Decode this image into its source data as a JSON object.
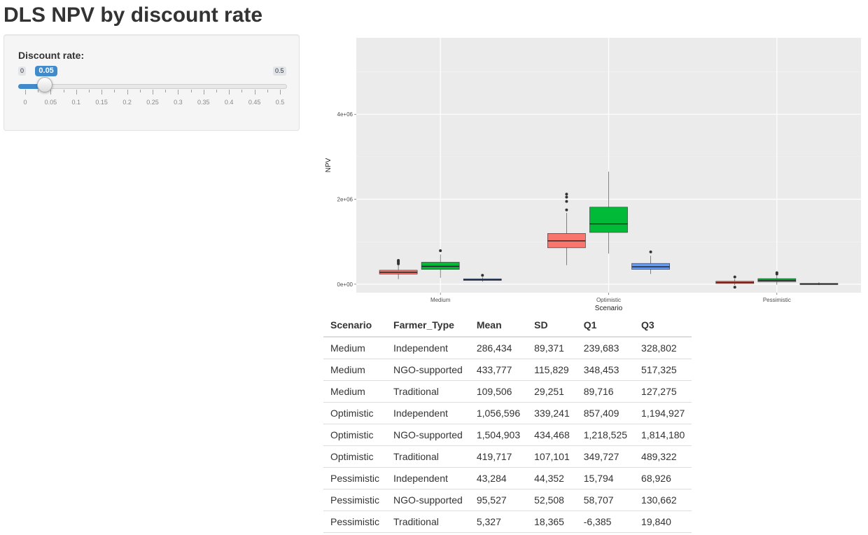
{
  "page": {
    "title": "DLS NPV by discount rate"
  },
  "slider": {
    "label": "Discount rate:",
    "min_label": "0",
    "max_label": "0.5",
    "value_label": "0.05",
    "value": 0.05,
    "min": 0,
    "max": 0.5,
    "tick_labels": [
      "0",
      "0.05",
      "0.1",
      "0.15",
      "0.2",
      "0.25",
      "0.3",
      "0.35",
      "0.4",
      "0.45",
      "0.5"
    ],
    "accent_color": "#428bca"
  },
  "chart_data": {
    "type": "boxplot",
    "xlabel": "Scenario",
    "ylabel": "NPV",
    "categories": [
      "Medium",
      "Optimistic",
      "Pessimistic"
    ],
    "ylim": [
      -200000,
      5800000
    ],
    "yticks": [
      0,
      2000000,
      4000000
    ],
    "ytick_labels": [
      "0e+00",
      "2e+06",
      "4e+06"
    ],
    "grid": true,
    "legend": "none",
    "series": [
      {
        "color": "#f8766d",
        "boxes": [
          {
            "category": "Medium",
            "lower_whisker": 120000,
            "q1": 239683,
            "median": 280000,
            "q3": 328802,
            "upper_whisker": 455000,
            "outliers": [
              480000,
              510000,
              540000,
              560000
            ]
          },
          {
            "category": "Optimistic",
            "lower_whisker": 450000,
            "q1": 857409,
            "median": 1020000,
            "q3": 1194927,
            "upper_whisker": 1680000,
            "outliers": [
              1750000,
              1950000,
              2050000,
              2120000
            ]
          },
          {
            "category": "Pessimistic",
            "lower_whisker": -20000,
            "q1": 15794,
            "median": 40000,
            "q3": 68926,
            "upper_whisker": 120000,
            "outliers": [
              170000,
              -70000
            ]
          }
        ]
      },
      {
        "color": "#00ba38",
        "boxes": [
          {
            "category": "Medium",
            "lower_whisker": 150000,
            "q1": 348453,
            "median": 420000,
            "q3": 517325,
            "upper_whisker": 700000,
            "outliers": [
              790000
            ]
          },
          {
            "category": "Optimistic",
            "lower_whisker": 720000,
            "q1": 1218525,
            "median": 1420000,
            "q3": 1814180,
            "upper_whisker": 2650000,
            "outliers": []
          },
          {
            "category": "Pessimistic",
            "lower_whisker": -10000,
            "q1": 58707,
            "median": 90000,
            "q3": 130662,
            "upper_whisker": 220000,
            "outliers": [
              240000,
              270000
            ]
          }
        ]
      },
      {
        "color": "#619cff",
        "boxes": [
          {
            "category": "Medium",
            "lower_whisker": 60000,
            "q1": 89716,
            "median": 105000,
            "q3": 127275,
            "upper_whisker": 165000,
            "outliers": [
              210000
            ]
          },
          {
            "category": "Optimistic",
            "lower_whisker": 240000,
            "q1": 349727,
            "median": 410000,
            "q3": 489322,
            "upper_whisker": 670000,
            "outliers": [
              760000
            ]
          },
          {
            "category": "Pessimistic",
            "lower_whisker": -20000,
            "q1": -6385,
            "median": 0,
            "q3": 19840,
            "upper_whisker": 45000,
            "outliers": []
          }
        ]
      }
    ]
  },
  "table": {
    "headers": [
      "Scenario",
      "Farmer_Type",
      "Mean",
      "SD",
      "Q1",
      "Q3"
    ],
    "rows": [
      [
        "Medium",
        "Independent",
        "286,434",
        "89,371",
        "239,683",
        "328,802"
      ],
      [
        "Medium",
        "NGO-supported",
        "433,777",
        "115,829",
        "348,453",
        "517,325"
      ],
      [
        "Medium",
        "Traditional",
        "109,506",
        "29,251",
        "89,716",
        "127,275"
      ],
      [
        "Optimistic",
        "Independent",
        "1,056,596",
        "339,241",
        "857,409",
        "1,194,927"
      ],
      [
        "Optimistic",
        "NGO-supported",
        "1,504,903",
        "434,468",
        "1,218,525",
        "1,814,180"
      ],
      [
        "Optimistic",
        "Traditional",
        "419,717",
        "107,101",
        "349,727",
        "489,322"
      ],
      [
        "Pessimistic",
        "Independent",
        "43,284",
        "44,352",
        "15,794",
        "68,926"
      ],
      [
        "Pessimistic",
        "NGO-supported",
        "95,527",
        "52,508",
        "58,707",
        "130,662"
      ],
      [
        "Pessimistic",
        "Traditional",
        "5,327",
        "18,365",
        "-6,385",
        "19,840"
      ]
    ]
  }
}
